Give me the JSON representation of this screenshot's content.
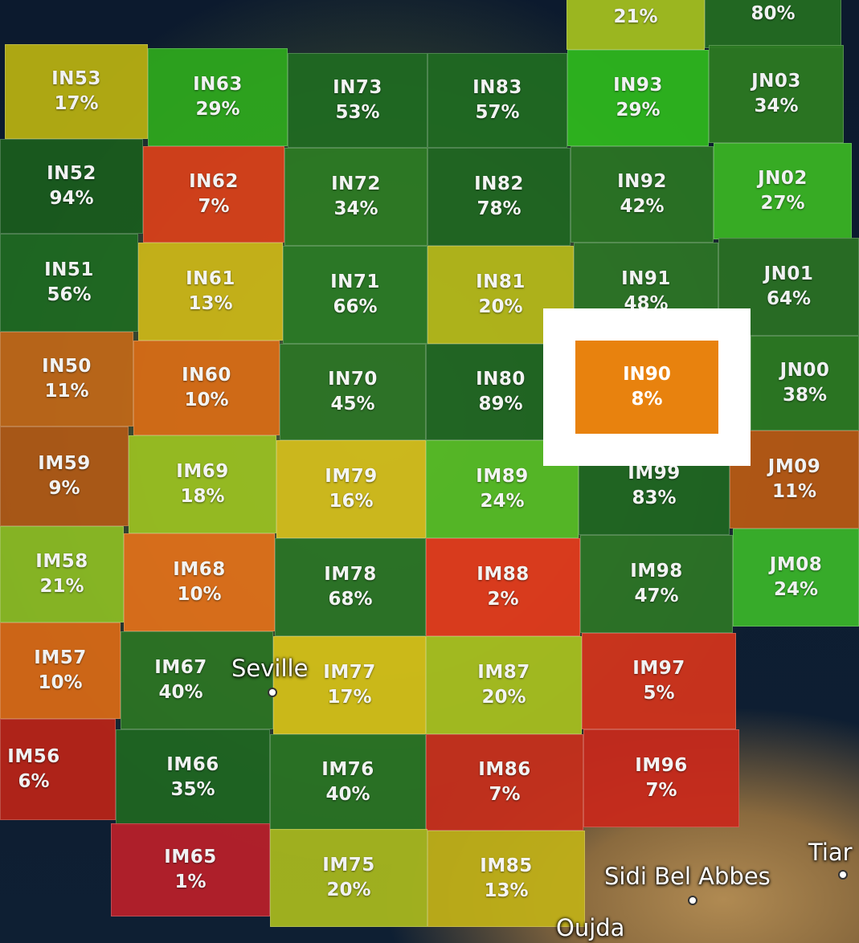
{
  "highlighted_cell": {
    "code": "IN90",
    "value": "8%",
    "color": "#e8820e"
  },
  "cells": [
    {
      "code": "IN53",
      "value": "17%",
      "color": "#b8b012"
    },
    {
      "code": "IN63",
      "value": "29%",
      "color": "#2ea81e"
    },
    {
      "code": "IN73",
      "value": "53%",
      "color": "#1f6a22"
    },
    {
      "code": "IN83",
      "value": "57%",
      "color": "#1f6a22"
    },
    {
      "code": "IN93",
      "value": "29%",
      "color": "#2eb81e"
    },
    {
      "code": "JN03",
      "value": "34%",
      "color": "#2c7a22"
    },
    {
      "code": "IN52",
      "value": "94%",
      "color": "#1a5c1e"
    },
    {
      "code": "IN62",
      "value": "7%",
      "color": "#d8401a"
    },
    {
      "code": "IN72",
      "value": "34%",
      "color": "#2c7a24"
    },
    {
      "code": "IN82",
      "value": "78%",
      "color": "#1f6622"
    },
    {
      "code": "IN92",
      "value": "42%",
      "color": "#2a7424"
    },
    {
      "code": "JN02",
      "value": "27%",
      "color": "#3ab424"
    },
    {
      "code": "IN51",
      "value": "56%",
      "color": "#1f6a22"
    },
    {
      "code": "IN61",
      "value": "13%",
      "color": "#cbb618"
    },
    {
      "code": "IN71",
      "value": "66%",
      "color": "#2a7a26"
    },
    {
      "code": "IN81",
      "value": "20%",
      "color": "#b4b81a"
    },
    {
      "code": "IN91",
      "value": "48%",
      "color": "#2c7426"
    },
    {
      "code": "JN01",
      "value": "64%",
      "color": "#2a7024"
    },
    {
      "code": "IN50",
      "value": "11%",
      "color": "#c06818"
    },
    {
      "code": "IN60",
      "value": "10%",
      "color": "#d86c16"
    },
    {
      "code": "IN70",
      "value": "45%",
      "color": "#2c7426"
    },
    {
      "code": "IN80",
      "value": "89%",
      "color": "#1f6622"
    },
    {
      "code": "JN00",
      "value": "38%",
      "color": "#2c7a22"
    },
    {
      "code": "IM59",
      "value": "9%",
      "color": "#b05a16"
    },
    {
      "code": "IM69",
      "value": "18%",
      "color": "#9ac022"
    },
    {
      "code": "IM79",
      "value": "16%",
      "color": "#d4be1c"
    },
    {
      "code": "IM89",
      "value": "24%",
      "color": "#56bc26"
    },
    {
      "code": "IM99",
      "value": "83%",
      "color": "#1f6622"
    },
    {
      "code": "JM09",
      "value": "11%",
      "color": "#b85a14"
    },
    {
      "code": "IM58",
      "value": "21%",
      "color": "#8cbc24"
    },
    {
      "code": "IM68",
      "value": "10%",
      "color": "#e0701a"
    },
    {
      "code": "IM78",
      "value": "68%",
      "color": "#2a7426"
    },
    {
      "code": "IM88",
      "value": "2%",
      "color": "#e23a1c"
    },
    {
      "code": "IM98",
      "value": "47%",
      "color": "#2c7426"
    },
    {
      "code": "JM08",
      "value": "24%",
      "color": "#3ab42a"
    },
    {
      "code": "IM57",
      "value": "10%",
      "color": "#d86a16"
    },
    {
      "code": "IM67",
      "value": "40%",
      "color": "#2c7424"
    },
    {
      "code": "IM77",
      "value": "17%",
      "color": "#d4c018"
    },
    {
      "code": "IM87",
      "value": "20%",
      "color": "#a8c020"
    },
    {
      "code": "IM97",
      "value": "5%",
      "color": "#d2341c"
    },
    {
      "code": "IM56",
      "value": "6%",
      "color": "#b82418"
    },
    {
      "code": "IM66",
      "value": "35%",
      "color": "#1f6622"
    },
    {
      "code": "IM76",
      "value": "40%",
      "color": "#2a7424"
    },
    {
      "code": "IM86",
      "value": "7%",
      "color": "#c8301c"
    },
    {
      "code": "IM96",
      "value": "7%",
      "color": "#c82a1c"
    },
    {
      "code": "IM65",
      "value": "1%",
      "color": "#b8202a"
    },
    {
      "code": "IM75",
      "value": "20%",
      "color": "#a8b81e"
    },
    {
      "code": "IM85",
      "value": "13%",
      "color": "#c0b018"
    },
    {
      "code": "top_partial_left",
      "value": "21%",
      "color": "#a4c020"
    },
    {
      "code": "top_partial_right",
      "value": "80%",
      "color": "#246c22"
    }
  ],
  "cities": [
    "Seville",
    "Sidi Bel Abbes",
    "Oujda",
    "Tiar"
  ]
}
